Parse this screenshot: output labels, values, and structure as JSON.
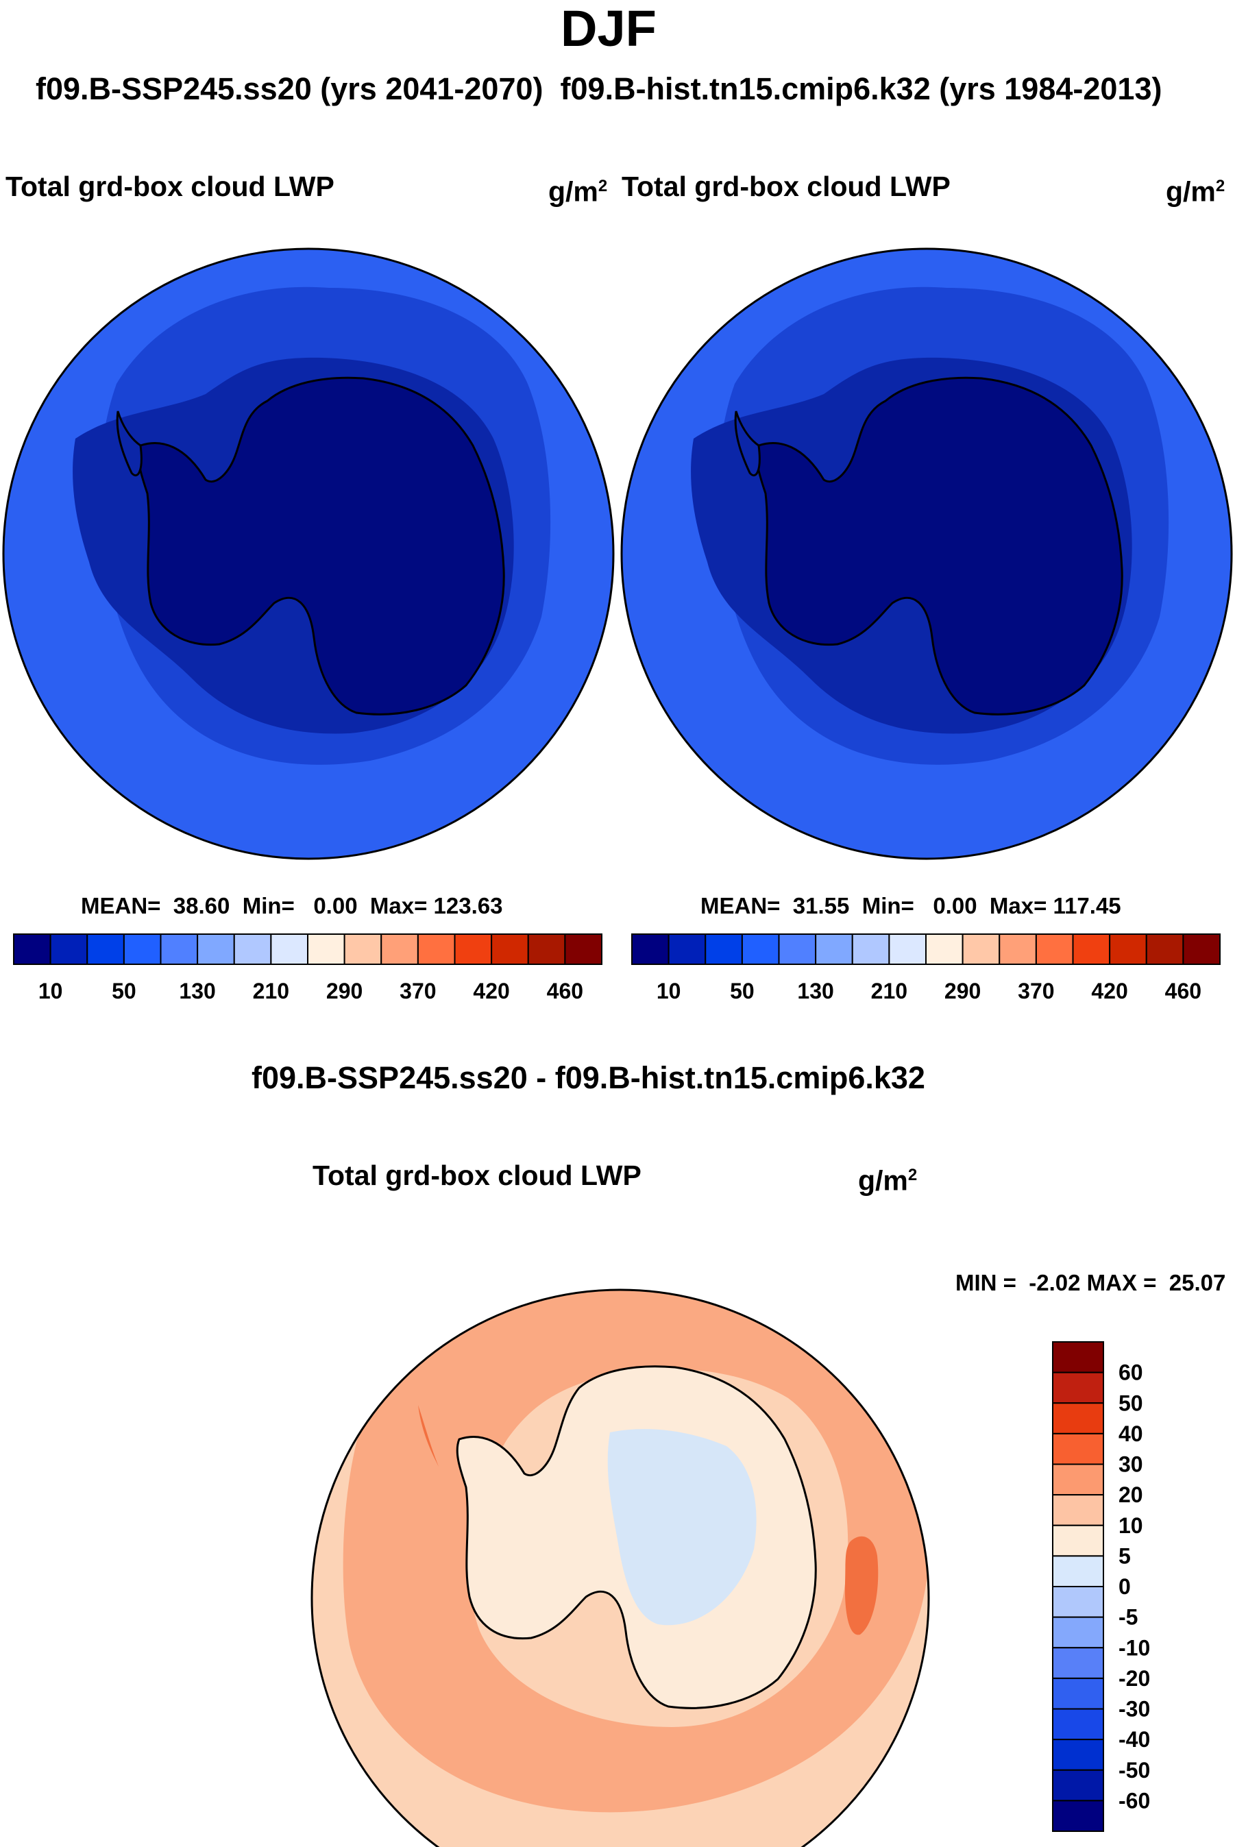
{
  "title": "DJF",
  "case_header": {
    "test": "f09.B-SSP245.ss20 (yrs 2041-2070)",
    "control": "f09.B-hist.tn15.cmip6.k32 (yrs 1984-2013)"
  },
  "panels": [
    {
      "variable": "Total grd-box cloud LWP",
      "units": "g/m",
      "units_exp": "2",
      "stats": {
        "mean_label": "MEAN=",
        "mean": "38.60",
        "min_label": "Min=",
        "min": "0.00",
        "max_label": "Max=",
        "max": "123.63"
      }
    },
    {
      "variable": "Total grd-box cloud LWP",
      "units": "g/m",
      "units_exp": "2",
      "stats": {
        "mean_label": "MEAN=",
        "mean": "31.55",
        "min_label": "Min=",
        "min": "0.00",
        "max_label": "Max=",
        "max": "117.45"
      }
    }
  ],
  "field_colorbar": {
    "colors": [
      "#000080",
      "#0020b8",
      "#0040e8",
      "#2060ff",
      "#5080ff",
      "#80a8ff",
      "#b0c8ff",
      "#dce8ff",
      "#fff0e0",
      "#ffc8a8",
      "#ffa078",
      "#ff7040",
      "#f04010",
      "#d02800",
      "#a81800",
      "#800000"
    ],
    "tick_labels": [
      "10",
      "50",
      "130",
      "210",
      "290",
      "370",
      "420",
      "460"
    ]
  },
  "diff_panel": {
    "title": "f09.B-SSP245.ss20 - f09.B-hist.tn15.cmip6.k32",
    "variable": "Total grd-box cloud LWP",
    "units": "g/m",
    "units_exp": "2",
    "stats": "MIN =  -2.02 MAX =  25.07"
  },
  "diff_colorbar": {
    "colors": [
      "#800000",
      "#c02010",
      "#e83c10",
      "#f86030",
      "#fc9a70",
      "#fdc4a4",
      "#fdebd8",
      "#d8e8fc",
      "#b0c8fc",
      "#84a8fc",
      "#5880f8",
      "#3060f0",
      "#1848e8",
      "#0030d0",
      "#0018a8",
      "#000080"
    ],
    "tick_labels": [
      "60",
      "50",
      "40",
      "30",
      "20",
      "10",
      "5",
      "0",
      "-5",
      "-10",
      "-20",
      "-30",
      "-40",
      "-50",
      "-60"
    ]
  },
  "map_colors": {
    "field_ocean": "#2c60f2",
    "field_mid": "#1a44d4",
    "field_inner": "#0b26a8",
    "field_land": "#000a80",
    "diff_base": "#fcd3b6",
    "diff_band": "#faa982",
    "diff_land": "#fdebd9",
    "diff_hot": "#f27040",
    "diff_neg": "#d6e6f8"
  }
}
